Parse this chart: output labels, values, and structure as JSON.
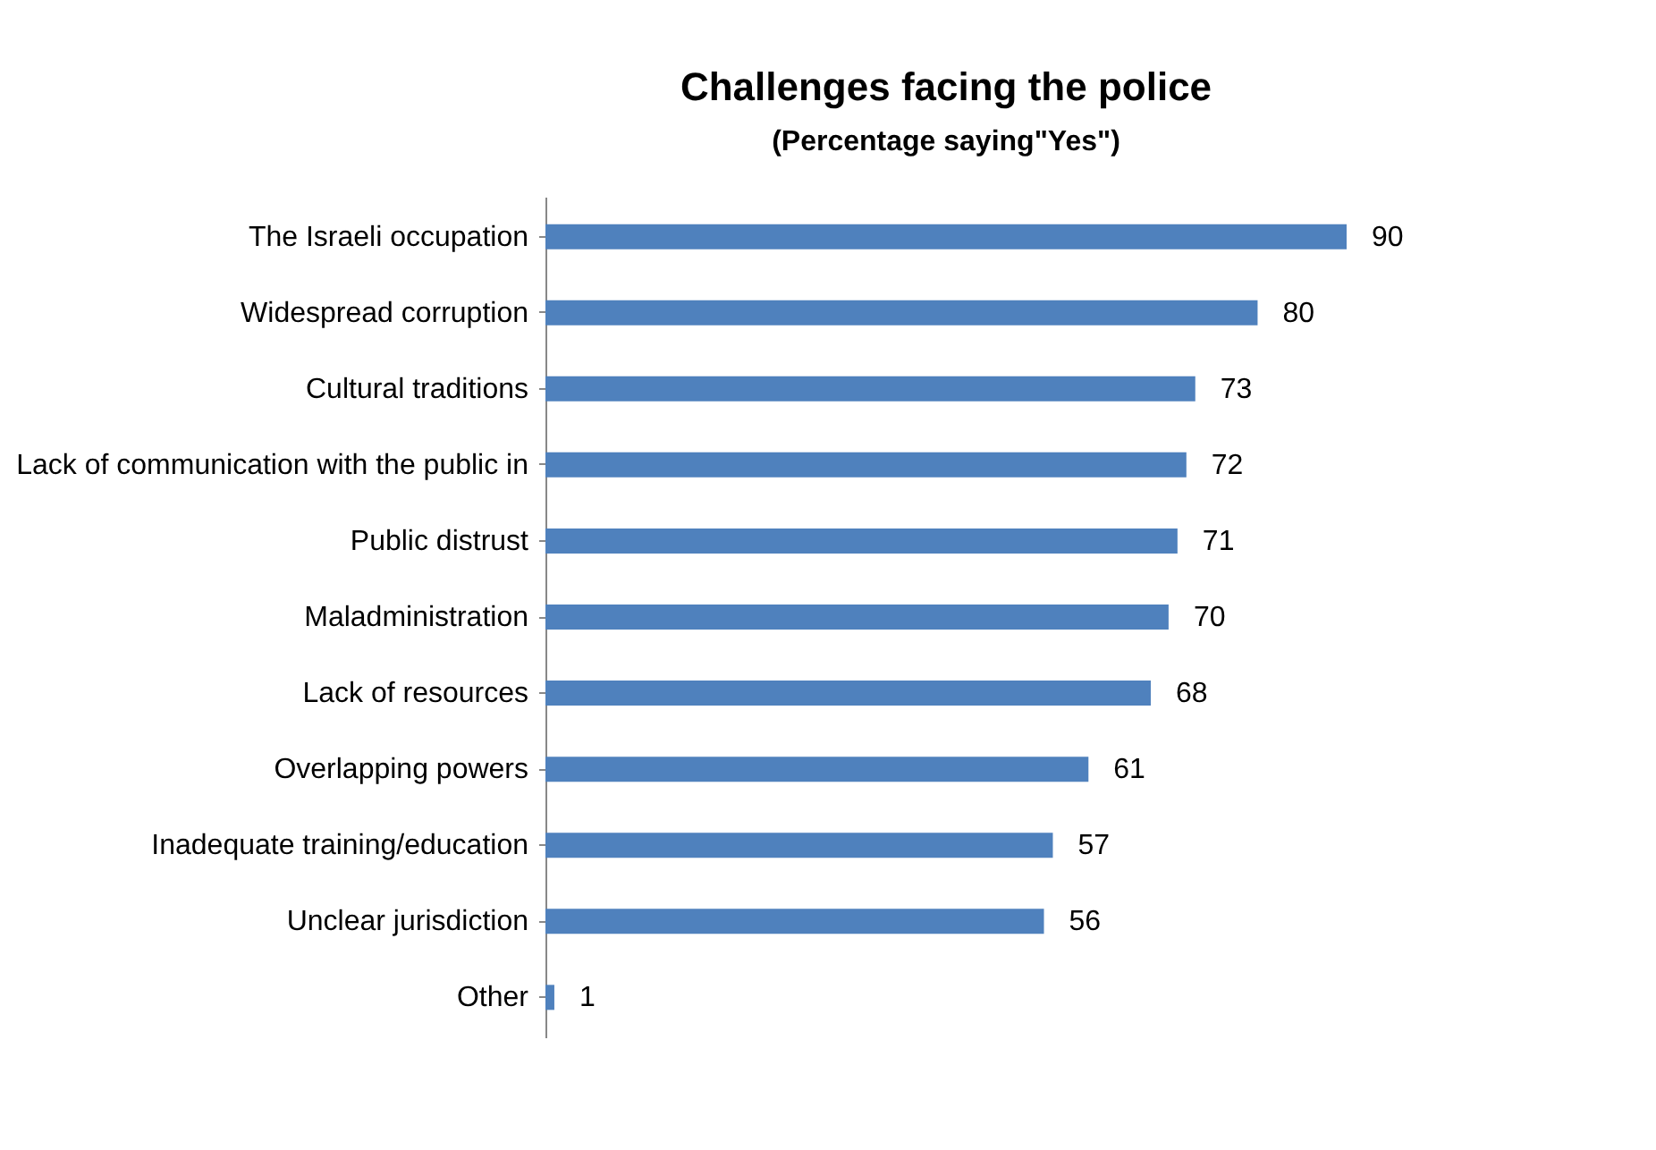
{
  "chart_data": {
    "type": "bar",
    "orientation": "horizontal",
    "title": "Challenges facing the police",
    "subtitle": "(Percentage saying\"Yes\")",
    "categories": [
      "The Israeli occupation",
      "Widespread corruption",
      "Cultural traditions",
      "Lack of communication with the public in",
      "Public distrust",
      "Maladministration",
      "Lack of resources",
      "Overlapping powers",
      "Inadequate training/education",
      "Unclear jurisdiction",
      "Other"
    ],
    "values": [
      90,
      80,
      73,
      72,
      71,
      70,
      68,
      61,
      57,
      56,
      1
    ],
    "color": "#4f81bd",
    "data_labels": true
  }
}
